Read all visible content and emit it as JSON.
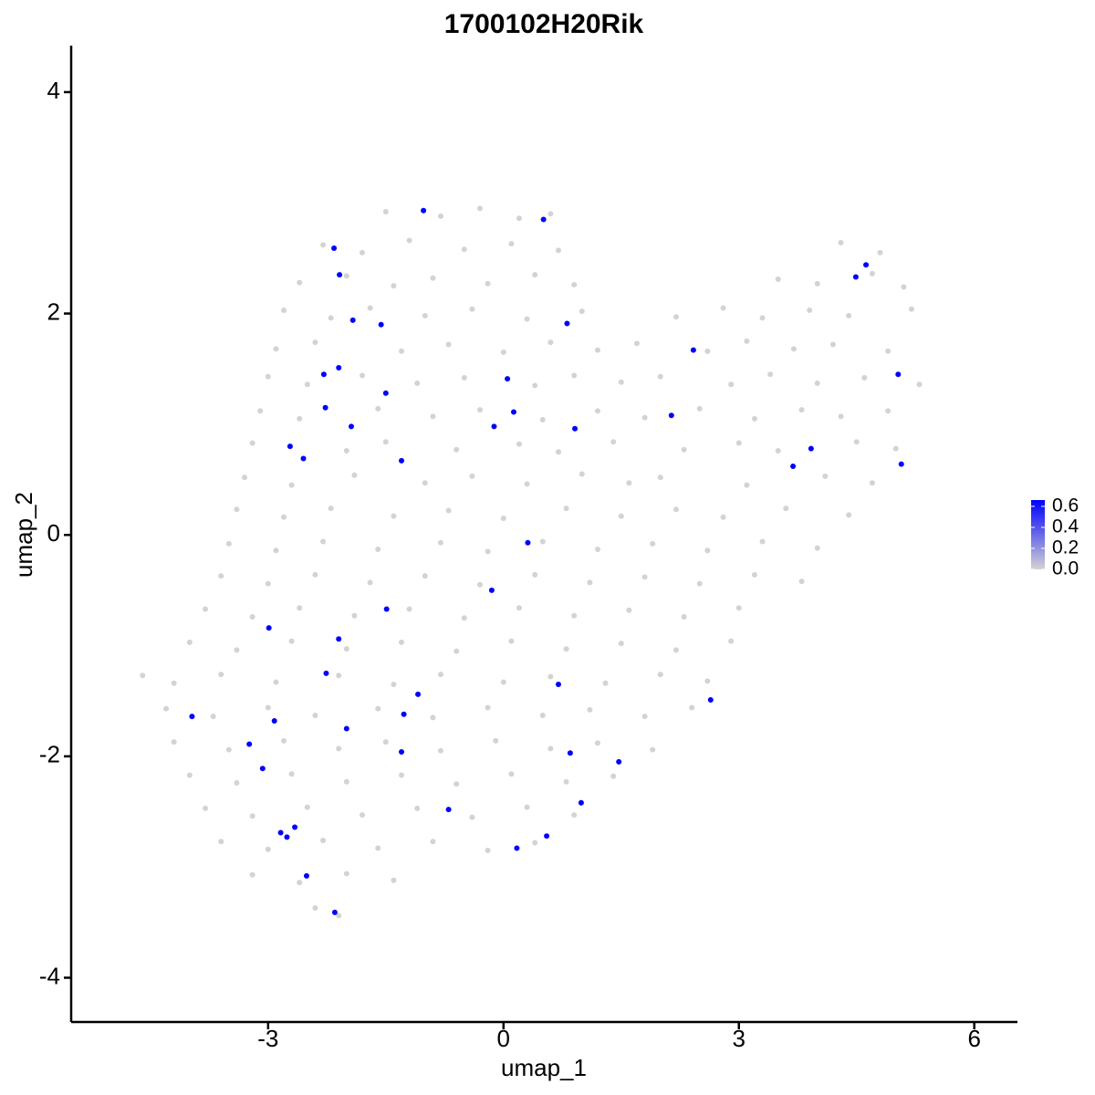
{
  "chart_data": {
    "type": "scatter",
    "title": "1700102H20Rik",
    "xlabel": "umap_1",
    "ylabel": "umap_2",
    "xlim": [
      -5.51,
      6.55
    ],
    "ylim": [
      -4.4,
      4.42
    ],
    "xticks": [
      -3,
      0,
      3,
      6
    ],
    "yticks": [
      -4,
      -2,
      0,
      2,
      4
    ],
    "series": [
      {
        "color": "#d3d3d3",
        "points": [
          [
            -1.5,
            2.92
          ],
          [
            -0.8,
            2.88
          ],
          [
            -0.3,
            2.95
          ],
          [
            0.2,
            2.86
          ],
          [
            0.6,
            2.9
          ],
          [
            -2.3,
            2.62
          ],
          [
            -1.8,
            2.55
          ],
          [
            -1.2,
            2.66
          ],
          [
            -0.5,
            2.58
          ],
          [
            0.1,
            2.63
          ],
          [
            0.7,
            2.57
          ],
          [
            4.3,
            2.64
          ],
          [
            4.8,
            2.55
          ],
          [
            -2.6,
            2.28
          ],
          [
            -2.0,
            2.34
          ],
          [
            -1.4,
            2.25
          ],
          [
            -0.9,
            2.32
          ],
          [
            -0.2,
            2.27
          ],
          [
            0.4,
            2.35
          ],
          [
            0.9,
            2.26
          ],
          [
            3.5,
            2.31
          ],
          [
            4.0,
            2.27
          ],
          [
            4.7,
            2.36
          ],
          [
            5.1,
            2.24
          ],
          [
            -2.8,
            2.03
          ],
          [
            -2.2,
            1.96
          ],
          [
            -1.7,
            2.05
          ],
          [
            -1.0,
            1.98
          ],
          [
            -0.4,
            2.04
          ],
          [
            0.3,
            1.95
          ],
          [
            1.0,
            2.02
          ],
          [
            2.2,
            1.97
          ],
          [
            2.8,
            2.05
          ],
          [
            3.3,
            1.96
          ],
          [
            3.9,
            2.03
          ],
          [
            4.4,
            1.98
          ],
          [
            5.2,
            2.04
          ],
          [
            -2.9,
            1.68
          ],
          [
            -2.4,
            1.74
          ],
          [
            -1.3,
            1.66
          ],
          [
            -0.7,
            1.72
          ],
          [
            0.0,
            1.65
          ],
          [
            0.6,
            1.74
          ],
          [
            1.2,
            1.67
          ],
          [
            1.7,
            1.73
          ],
          [
            2.6,
            1.66
          ],
          [
            3.1,
            1.75
          ],
          [
            3.7,
            1.68
          ],
          [
            4.2,
            1.72
          ],
          [
            4.9,
            1.66
          ],
          [
            -3.0,
            1.43
          ],
          [
            -2.5,
            1.36
          ],
          [
            -1.8,
            1.44
          ],
          [
            -1.1,
            1.37
          ],
          [
            -0.5,
            1.42
          ],
          [
            0.4,
            1.35
          ],
          [
            0.9,
            1.44
          ],
          [
            1.5,
            1.38
          ],
          [
            2.0,
            1.43
          ],
          [
            2.9,
            1.36
          ],
          [
            3.4,
            1.45
          ],
          [
            4.0,
            1.37
          ],
          [
            4.6,
            1.42
          ],
          [
            5.3,
            1.36
          ],
          [
            -3.1,
            1.12
          ],
          [
            -2.6,
            1.05
          ],
          [
            -1.6,
            1.14
          ],
          [
            -0.9,
            1.07
          ],
          [
            -0.3,
            1.13
          ],
          [
            0.5,
            1.04
          ],
          [
            1.2,
            1.12
          ],
          [
            1.8,
            1.06
          ],
          [
            2.5,
            1.14
          ],
          [
            3.2,
            1.05
          ],
          [
            3.8,
            1.13
          ],
          [
            4.3,
            1.07
          ],
          [
            4.9,
            1.12
          ],
          [
            -3.2,
            0.83
          ],
          [
            -2.0,
            0.76
          ],
          [
            -1.5,
            0.84
          ],
          [
            -0.6,
            0.77
          ],
          [
            0.2,
            0.82
          ],
          [
            0.7,
            0.75
          ],
          [
            1.4,
            0.84
          ],
          [
            2.3,
            0.77
          ],
          [
            3.0,
            0.83
          ],
          [
            3.5,
            0.76
          ],
          [
            4.5,
            0.84
          ],
          [
            5.0,
            0.78
          ],
          [
            -3.3,
            0.52
          ],
          [
            -2.7,
            0.45
          ],
          [
            -1.9,
            0.54
          ],
          [
            -1.0,
            0.47
          ],
          [
            -0.4,
            0.53
          ],
          [
            0.3,
            0.46
          ],
          [
            1.0,
            0.55
          ],
          [
            1.6,
            0.47
          ],
          [
            2.0,
            0.52
          ],
          [
            3.1,
            0.45
          ],
          [
            4.1,
            0.53
          ],
          [
            4.7,
            0.47
          ],
          [
            -3.4,
            0.23
          ],
          [
            -2.8,
            0.16
          ],
          [
            -2.2,
            0.24
          ],
          [
            -1.4,
            0.17
          ],
          [
            -0.7,
            0.22
          ],
          [
            0.0,
            0.15
          ],
          [
            0.8,
            0.24
          ],
          [
            1.5,
            0.17
          ],
          [
            2.2,
            0.23
          ],
          [
            2.8,
            0.16
          ],
          [
            3.6,
            0.24
          ],
          [
            4.4,
            0.18
          ],
          [
            -3.5,
            -0.08
          ],
          [
            -2.9,
            -0.14
          ],
          [
            -2.3,
            -0.06
          ],
          [
            -1.6,
            -0.13
          ],
          [
            -0.8,
            -0.07
          ],
          [
            -0.2,
            -0.15
          ],
          [
            0.5,
            -0.06
          ],
          [
            1.2,
            -0.13
          ],
          [
            1.9,
            -0.08
          ],
          [
            2.6,
            -0.14
          ],
          [
            3.3,
            -0.06
          ],
          [
            4.0,
            -0.12
          ],
          [
            -3.6,
            -0.37
          ],
          [
            -3.0,
            -0.44
          ],
          [
            -2.4,
            -0.36
          ],
          [
            -1.7,
            -0.43
          ],
          [
            -1.0,
            -0.37
          ],
          [
            -0.3,
            -0.45
          ],
          [
            0.4,
            -0.36
          ],
          [
            1.1,
            -0.43
          ],
          [
            1.8,
            -0.38
          ],
          [
            2.5,
            -0.44
          ],
          [
            3.2,
            -0.36
          ],
          [
            3.8,
            -0.42
          ],
          [
            -3.8,
            -0.67
          ],
          [
            -3.2,
            -0.74
          ],
          [
            -2.6,
            -0.66
          ],
          [
            -1.9,
            -0.73
          ],
          [
            -1.2,
            -0.67
          ],
          [
            -0.5,
            -0.75
          ],
          [
            0.2,
            -0.66
          ],
          [
            0.9,
            -0.73
          ],
          [
            1.6,
            -0.68
          ],
          [
            2.3,
            -0.74
          ],
          [
            3.0,
            -0.66
          ],
          [
            -4.0,
            -0.97
          ],
          [
            -3.4,
            -1.04
          ],
          [
            -2.7,
            -0.96
          ],
          [
            -2.0,
            -1.03
          ],
          [
            -1.3,
            -0.97
          ],
          [
            -0.6,
            -1.05
          ],
          [
            0.1,
            -0.96
          ],
          [
            0.8,
            -1.03
          ],
          [
            1.5,
            -0.98
          ],
          [
            2.2,
            -1.04
          ],
          [
            2.9,
            -0.96
          ],
          [
            -4.6,
            -1.27
          ],
          [
            -4.2,
            -1.34
          ],
          [
            -3.6,
            -1.26
          ],
          [
            -2.9,
            -1.33
          ],
          [
            -2.1,
            -1.27
          ],
          [
            -1.4,
            -1.35
          ],
          [
            -0.8,
            -1.26
          ],
          [
            0.0,
            -1.33
          ],
          [
            0.6,
            -1.28
          ],
          [
            1.3,
            -1.34
          ],
          [
            2.0,
            -1.26
          ],
          [
            2.6,
            -1.32
          ],
          [
            -4.3,
            -1.57
          ],
          [
            -3.7,
            -1.64
          ],
          [
            -3.0,
            -1.56
          ],
          [
            -2.4,
            -1.63
          ],
          [
            -1.6,
            -1.57
          ],
          [
            -0.9,
            -1.65
          ],
          [
            -0.2,
            -1.56
          ],
          [
            0.5,
            -1.63
          ],
          [
            1.1,
            -1.58
          ],
          [
            1.8,
            -1.64
          ],
          [
            2.4,
            -1.56
          ],
          [
            -4.2,
            -1.87
          ],
          [
            -3.5,
            -1.94
          ],
          [
            -2.8,
            -1.86
          ],
          [
            -2.1,
            -1.93
          ],
          [
            -1.5,
            -1.87
          ],
          [
            -0.8,
            -1.95
          ],
          [
            -0.1,
            -1.86
          ],
          [
            0.6,
            -1.93
          ],
          [
            1.2,
            -1.88
          ],
          [
            1.9,
            -1.94
          ],
          [
            -4.0,
            -2.17
          ],
          [
            -3.4,
            -2.24
          ],
          [
            -2.7,
            -2.16
          ],
          [
            -2.0,
            -2.23
          ],
          [
            -1.3,
            -2.17
          ],
          [
            -0.6,
            -2.25
          ],
          [
            0.1,
            -2.16
          ],
          [
            0.8,
            -2.23
          ],
          [
            1.4,
            -2.18
          ],
          [
            -3.8,
            -2.47
          ],
          [
            -3.2,
            -2.54
          ],
          [
            -2.5,
            -2.46
          ],
          [
            -1.8,
            -2.53
          ],
          [
            -1.1,
            -2.47
          ],
          [
            -0.4,
            -2.55
          ],
          [
            0.3,
            -2.46
          ],
          [
            0.9,
            -2.53
          ],
          [
            -3.6,
            -2.77
          ],
          [
            -3.0,
            -2.84
          ],
          [
            -2.3,
            -2.76
          ],
          [
            -1.6,
            -2.83
          ],
          [
            -0.9,
            -2.77
          ],
          [
            -0.2,
            -2.85
          ],
          [
            0.4,
            -2.78
          ],
          [
            -3.2,
            -3.07
          ],
          [
            -2.6,
            -3.14
          ],
          [
            -2.0,
            -3.06
          ],
          [
            -1.4,
            -3.12
          ],
          [
            -2.4,
            -3.37
          ],
          [
            -2.1,
            -3.44
          ]
        ]
      },
      {
        "color": "#0000ff",
        "points": [
          [
            -2.16,
            2.59
          ],
          [
            -2.09,
            2.35
          ],
          [
            -1.02,
            2.93
          ],
          [
            0.51,
            2.85
          ],
          [
            -1.92,
            1.94
          ],
          [
            -1.56,
            1.9
          ],
          [
            0.81,
            1.91
          ],
          [
            2.42,
            1.67
          ],
          [
            -2.29,
            1.45
          ],
          [
            -2.1,
            1.51
          ],
          [
            0.05,
            1.41
          ],
          [
            -1.5,
            1.28
          ],
          [
            -2.27,
            1.15
          ],
          [
            0.13,
            1.11
          ],
          [
            2.14,
            1.08
          ],
          [
            -1.94,
            0.98
          ],
          [
            -0.12,
            0.98
          ],
          [
            0.91,
            0.96
          ],
          [
            -2.72,
            0.8
          ],
          [
            -2.55,
            0.69
          ],
          [
            -1.3,
            0.67
          ],
          [
            3.92,
            0.78
          ],
          [
            3.69,
            0.62
          ],
          [
            4.49,
            2.33
          ],
          [
            4.62,
            2.44
          ],
          [
            5.03,
            1.45
          ],
          [
            5.07,
            0.64
          ],
          [
            0.31,
            -0.07
          ],
          [
            -0.15,
            -0.5
          ],
          [
            -1.49,
            -0.67
          ],
          [
            -2.99,
            -0.84
          ],
          [
            -2.1,
            -0.94
          ],
          [
            -2.26,
            -1.25
          ],
          [
            -1.09,
            -1.44
          ],
          [
            0.7,
            -1.35
          ],
          [
            2.64,
            -1.49
          ],
          [
            -3.97,
            -1.64
          ],
          [
            -2.92,
            -1.68
          ],
          [
            -1.27,
            -1.62
          ],
          [
            -2.0,
            -1.75
          ],
          [
            -3.24,
            -1.89
          ],
          [
            -1.3,
            -1.96
          ],
          [
            0.85,
            -1.97
          ],
          [
            1.47,
            -2.05
          ],
          [
            -3.07,
            -2.11
          ],
          [
            0.99,
            -2.42
          ],
          [
            -0.7,
            -2.48
          ],
          [
            -2.84,
            -2.69
          ],
          [
            -2.76,
            -2.73
          ],
          [
            -2.66,
            -2.64
          ],
          [
            0.55,
            -2.72
          ],
          [
            0.17,
            -2.83
          ],
          [
            -2.51,
            -3.08
          ],
          [
            -2.15,
            -3.41
          ]
        ]
      }
    ],
    "colorbar": {
      "lim": [
        0,
        0.66
      ],
      "colors": [
        "#d3d3d3",
        "#0000ff"
      ],
      "ticks": [
        {
          "value": 0,
          "label": "0.0"
        },
        {
          "value": 0.2,
          "label": "0.2"
        },
        {
          "value": 0.4,
          "label": "0.4"
        },
        {
          "value": 0.6,
          "label": "0.6"
        }
      ]
    }
  }
}
